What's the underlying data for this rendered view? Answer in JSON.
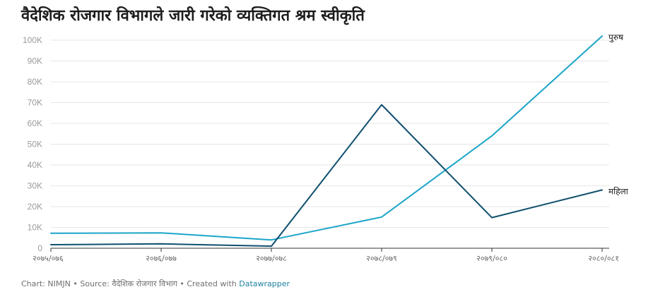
{
  "title": "वैदेशिक रोजगार विभागले जारी गरेको व्यक्तिगत श्रम स्वीकृति",
  "footer": {
    "chart_credit": "Chart: NIMJN",
    "sep1": " • ",
    "source": "Source: वैदेशिक रोजगार विभाग",
    "sep2": " • ",
    "created_with": "Created with ",
    "tool": "Datawrapper"
  },
  "colors": {
    "male": "#1ba5c8",
    "female": "#0f4f6e"
  },
  "chart_data": {
    "type": "line",
    "title": "वैदेशिक रोजगार विभागले जारी गरेको व्यक्तिगत श्रम स्वीकृति",
    "xlabel": "",
    "ylabel": "",
    "categories": [
      "२०७५/०७६",
      "२०७६/०७७",
      "२०७७/०७८",
      "२०७८/०७९",
      "२०७९/०८०",
      "२०८०/०८१"
    ],
    "ylim": [
      0,
      100000
    ],
    "yticks": [
      0,
      10000,
      20000,
      30000,
      40000,
      50000,
      60000,
      70000,
      80000,
      90000,
      100000
    ],
    "ytick_labels": [
      "0",
      "10K",
      "20K",
      "30K",
      "40K",
      "50K",
      "60K",
      "70K",
      "80K",
      "90K",
      "100K"
    ],
    "grid": true,
    "series": [
      {
        "name": "पुरुष",
        "color": "#1ba5c8",
        "values": [
          7200,
          7400,
          4000,
          15000,
          54000,
          102000
        ]
      },
      {
        "name": "महिला",
        "color": "#0f4f6e",
        "values": [
          1700,
          2100,
          1000,
          69000,
          14700,
          28000
        ]
      }
    ]
  }
}
